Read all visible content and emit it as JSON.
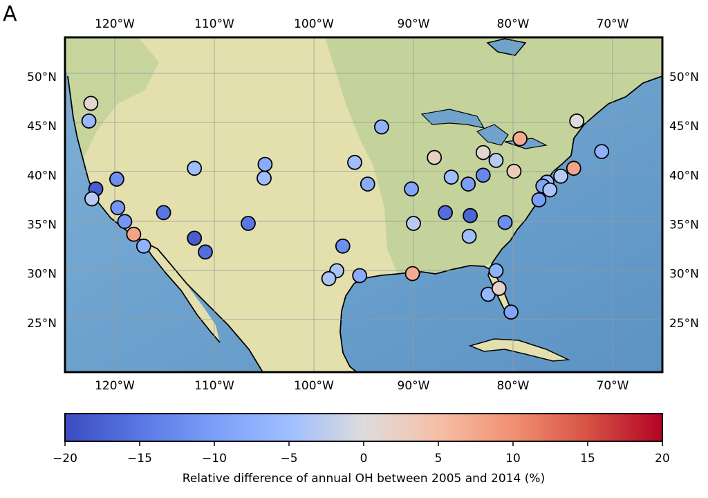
{
  "panel_letter": "A",
  "colorbar": {
    "label": "Relative difference of annual OH between 2005 and 2014 (%)",
    "min": -20,
    "max": 20,
    "ticks": [
      "−20",
      "−15",
      "−10",
      "−5",
      "0",
      "5",
      "10",
      "15",
      "20"
    ],
    "tick_values": [
      -20,
      -15,
      -10,
      -5,
      0,
      5,
      10,
      15,
      20
    ],
    "colormap": "coolwarm"
  },
  "map": {
    "lon_range": [
      -125,
      -65
    ],
    "lat_range": [
      20,
      54
    ],
    "lon_ticks": [
      {
        "value": -120,
        "label": "120°W"
      },
      {
        "value": -110,
        "label": "110°W"
      },
      {
        "value": -100,
        "label": "100°W"
      },
      {
        "value": -90,
        "label": "90°W"
      },
      {
        "value": -80,
        "label": "80°W"
      },
      {
        "value": -70,
        "label": "70°W"
      }
    ],
    "lat_ticks": [
      {
        "value": 50,
        "label": "50°N"
      },
      {
        "value": 45,
        "label": "45°N"
      },
      {
        "value": 40,
        "label": "40°N"
      },
      {
        "value": 35,
        "label": "35°N"
      },
      {
        "value": 30,
        "label": "30°N"
      },
      {
        "value": 25,
        "label": "25°N"
      }
    ],
    "gridlines": true,
    "colors": {
      "ocean": "#6fa3cc",
      "land": "#e6e2b0",
      "coast": "#000000",
      "grid": "#9a9a9a"
    }
  },
  "chart_data": {
    "type": "scatter",
    "xlabel": "",
    "ylabel": "",
    "xlim": [
      -125,
      -65
    ],
    "ylim": [
      20,
      54
    ],
    "colorbar_range": [
      -20,
      20
    ],
    "points": [
      {
        "lon": -122.4,
        "lat": 47.3,
        "value": 1
      },
      {
        "lon": -122.6,
        "lat": 45.5,
        "value": -6
      },
      {
        "lon": -121.9,
        "lat": 38.6,
        "value": -18
      },
      {
        "lon": -119.8,
        "lat": 39.6,
        "value": -12
      },
      {
        "lon": -122.3,
        "lat": 37.6,
        "value": -3
      },
      {
        "lon": -119.7,
        "lat": 36.7,
        "value": -11
      },
      {
        "lon": -119.0,
        "lat": 35.3,
        "value": -11
      },
      {
        "lon": -118.1,
        "lat": 34.0,
        "value": 8
      },
      {
        "lon": -117.1,
        "lat": 32.8,
        "value": -7
      },
      {
        "lon": -115.1,
        "lat": 36.2,
        "value": -15
      },
      {
        "lon": -112.0,
        "lat": 40.7,
        "value": -5
      },
      {
        "lon": -112.0,
        "lat": 33.6,
        "value": -18
      },
      {
        "lon": -110.9,
        "lat": 32.2,
        "value": -16
      },
      {
        "lon": -104.9,
        "lat": 41.1,
        "value": -8
      },
      {
        "lon": -105.0,
        "lat": 39.7,
        "value": -5
      },
      {
        "lon": -106.6,
        "lat": 35.1,
        "value": -15
      },
      {
        "lon": -93.2,
        "lat": 44.9,
        "value": -7
      },
      {
        "lon": -95.9,
        "lat": 41.3,
        "value": -5
      },
      {
        "lon": -94.6,
        "lat": 39.1,
        "value": -8
      },
      {
        "lon": -90.2,
        "lat": 38.6,
        "value": -9
      },
      {
        "lon": -90.0,
        "lat": 35.1,
        "value": -3
      },
      {
        "lon": -97.1,
        "lat": 32.8,
        "value": -12
      },
      {
        "lon": -97.7,
        "lat": 30.3,
        "value": -4
      },
      {
        "lon": -98.5,
        "lat": 29.5,
        "value": -4
      },
      {
        "lon": -95.4,
        "lat": 29.8,
        "value": -8
      },
      {
        "lon": -90.1,
        "lat": 30.0,
        "value": 7
      },
      {
        "lon": -87.9,
        "lat": 41.8,
        "value": 2
      },
      {
        "lon": -86.2,
        "lat": 39.8,
        "value": -5
      },
      {
        "lon": -84.5,
        "lat": 39.1,
        "value": -10
      },
      {
        "lon": -83.0,
        "lat": 40.0,
        "value": -13
      },
      {
        "lon": -83.0,
        "lat": 42.3,
        "value": 1
      },
      {
        "lon": -81.7,
        "lat": 41.5,
        "value": -3
      },
      {
        "lon": -79.9,
        "lat": 40.4,
        "value": 3
      },
      {
        "lon": -86.8,
        "lat": 36.2,
        "value": -16
      },
      {
        "lon": -84.4,
        "lat": 33.8,
        "value": -5
      },
      {
        "lon": -84.3,
        "lat": 35.9,
        "value": -17
      },
      {
        "lon": -80.8,
        "lat": 35.2,
        "value": -12
      },
      {
        "lon": -81.7,
        "lat": 30.3,
        "value": -7
      },
      {
        "lon": -82.5,
        "lat": 27.9,
        "value": -6
      },
      {
        "lon": -81.4,
        "lat": 28.5,
        "value": 2
      },
      {
        "lon": -80.2,
        "lat": 26.1,
        "value": -9
      },
      {
        "lon": -79.3,
        "lat": 43.7,
        "value": 7
      },
      {
        "lon": -73.6,
        "lat": 45.5,
        "value": 0
      },
      {
        "lon": -71.1,
        "lat": 42.4,
        "value": -7
      },
      {
        "lon": -73.9,
        "lat": 40.7,
        "value": 8
      },
      {
        "lon": -75.2,
        "lat": 39.9,
        "value": -3
      },
      {
        "lon": -76.6,
        "lat": 39.3,
        "value": -5
      },
      {
        "lon": -77.0,
        "lat": 38.9,
        "value": -9
      },
      {
        "lon": -76.3,
        "lat": 38.5,
        "value": -4
      },
      {
        "lon": -77.4,
        "lat": 37.5,
        "value": -10
      }
    ]
  }
}
